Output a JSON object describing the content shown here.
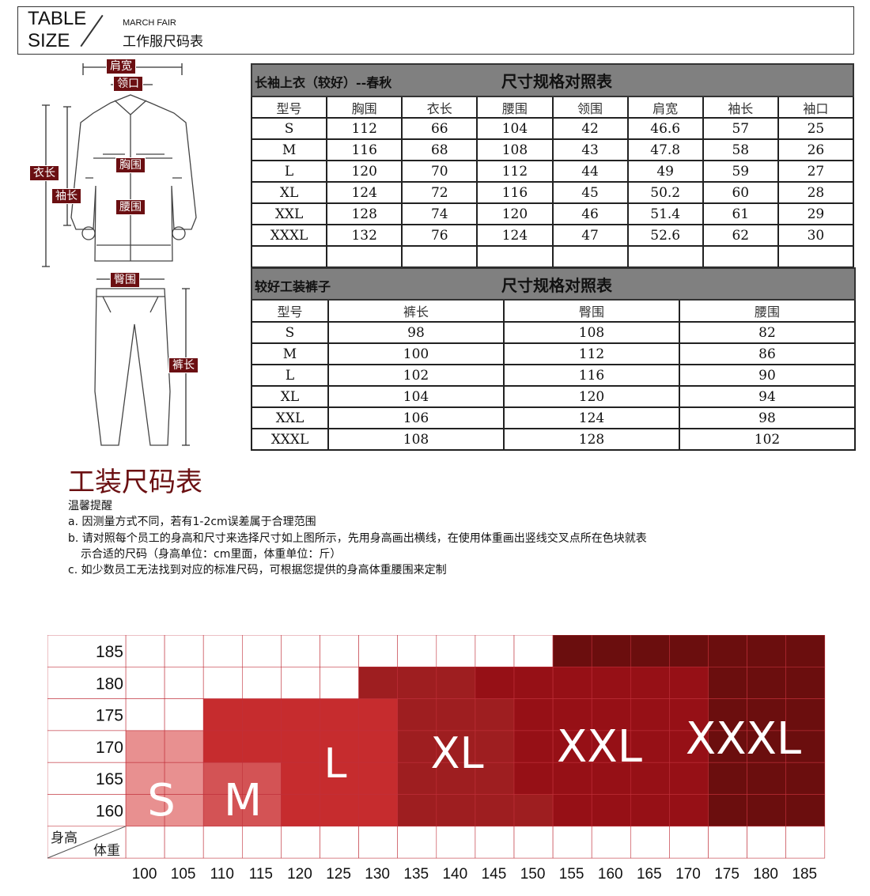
{
  "header": {
    "line1": "TABLE",
    "line2": "SIZE",
    "brand": "MARCH FAIR",
    "title": "工作服尺码表"
  },
  "diagram": {
    "labels": {
      "shoulder": "肩宽",
      "collar": "领口",
      "chest": "胸围",
      "waist": "腰围",
      "length": "衣长",
      "sleeve": "袖长",
      "hip": "臀围",
      "pants_length": "裤长"
    }
  },
  "jacket_table": {
    "subtitle": "长袖上衣（较好）--春秋",
    "title": "尺寸规格对照表",
    "headers": [
      "型号",
      "胸围",
      "衣长",
      "腰围",
      "领围",
      "肩宽",
      "袖长",
      "袖口"
    ],
    "rows": [
      [
        "S",
        "112",
        "66",
        "104",
        "42",
        "46.6",
        "57",
        "25"
      ],
      [
        "M",
        "116",
        "68",
        "108",
        "43",
        "47.8",
        "58",
        "26"
      ],
      [
        "L",
        "120",
        "70",
        "112",
        "44",
        "49",
        "59",
        "27"
      ],
      [
        "XL",
        "124",
        "72",
        "116",
        "45",
        "50.2",
        "60",
        "28"
      ],
      [
        "XXL",
        "128",
        "74",
        "120",
        "46",
        "51.4",
        "61",
        "29"
      ],
      [
        "XXXL",
        "132",
        "76",
        "124",
        "47",
        "52.6",
        "62",
        "30"
      ]
    ]
  },
  "pants_table": {
    "subtitle": "较好工装裤子",
    "title": "尺寸规格对照表",
    "headers": [
      "型号",
      "裤长",
      "臀围",
      "腰围"
    ],
    "rows": [
      [
        "S",
        "98",
        "108",
        "82"
      ],
      [
        "M",
        "100",
        "112",
        "86"
      ],
      [
        "L",
        "102",
        "116",
        "90"
      ],
      [
        "XL",
        "104",
        "120",
        "94"
      ],
      [
        "XXL",
        "106",
        "124",
        "98"
      ],
      [
        "XXXL",
        "108",
        "128",
        "102"
      ]
    ]
  },
  "notes": {
    "title": "工装尺码表",
    "heading": "温馨提醒",
    "a": "a. 因测量方式不同，若有1-2cm误差属于合理范围",
    "b1": "b. 请对照每个员工的身高和尺寸来选择尺寸如上图所示，先用身高画出横线，在使用体重画出竖线交叉点所在色块就表",
    "b2": "示合适的尺码（身高单位：cm里面，体重单位：斤）",
    "c": "c. 如少数员工无法找到对应的标准尺码，可根据您提供的身高体重腰围来定制"
  },
  "chart_data": {
    "type": "heatmap",
    "ylabel": "身高",
    "xlabel": "体重",
    "y": [
      185,
      180,
      175,
      170,
      165,
      160
    ],
    "x": [
      100,
      105,
      110,
      115,
      120,
      125,
      130,
      135,
      140,
      145,
      150,
      155,
      160,
      165,
      170,
      175,
      180,
      185
    ],
    "cells": [
      [
        "",
        "",
        "",
        "",
        "",
        "",
        "",
        "",
        "",
        "",
        "",
        "XXXL",
        "XXXL",
        "XXXL",
        "XXXL",
        "XXXL",
        "XXXL",
        "XXXL"
      ],
      [
        "",
        "",
        "",
        "",
        "",
        "",
        "XL",
        "XL",
        "XL",
        "XXL",
        "XXL",
        "XXL",
        "XXL",
        "XXL",
        "XXL",
        "XXXL",
        "XXXL",
        "XXXL"
      ],
      [
        "",
        "",
        "L",
        "L",
        "L",
        "L",
        "L",
        "XL",
        "XL",
        "XL",
        "XXL",
        "XXL",
        "XXL",
        "XXL",
        "XXL",
        "XXXL",
        "XXXL",
        "XXXL"
      ],
      [
        "S",
        "S",
        "L",
        "L",
        "L",
        "L",
        "L",
        "XL",
        "XL",
        "XL",
        "XXL",
        "XXL",
        "XXL",
        "XXL",
        "XXL",
        "XXXL",
        "XXXL",
        "XXXL"
      ],
      [
        "S",
        "S",
        "M",
        "M",
        "L",
        "L",
        "L",
        "XL",
        "XL",
        "XL",
        "XXL",
        "XXL",
        "XXL",
        "XXL",
        "XXL",
        "XXXL",
        "XXXL",
        "XXXL"
      ],
      [
        "S",
        "S",
        "M",
        "M",
        "L",
        "L",
        "L",
        "XL",
        "XL",
        "XL",
        "XL",
        "XXL",
        "XXL",
        "XXL",
        "XXL",
        "XXXL",
        "XXXL",
        "XXXL"
      ]
    ],
    "sizes": [
      "S",
      "M",
      "L",
      "XL",
      "XXL",
      "XXXL"
    ],
    "colors": {
      "S": "#e89090",
      "M": "#d35355",
      "L": "#c62c2e",
      "XL": "#9e1e20",
      "XXL": "#961016",
      "XXXL": "#6b0e0e",
      "grid": "#c0303a"
    }
  }
}
